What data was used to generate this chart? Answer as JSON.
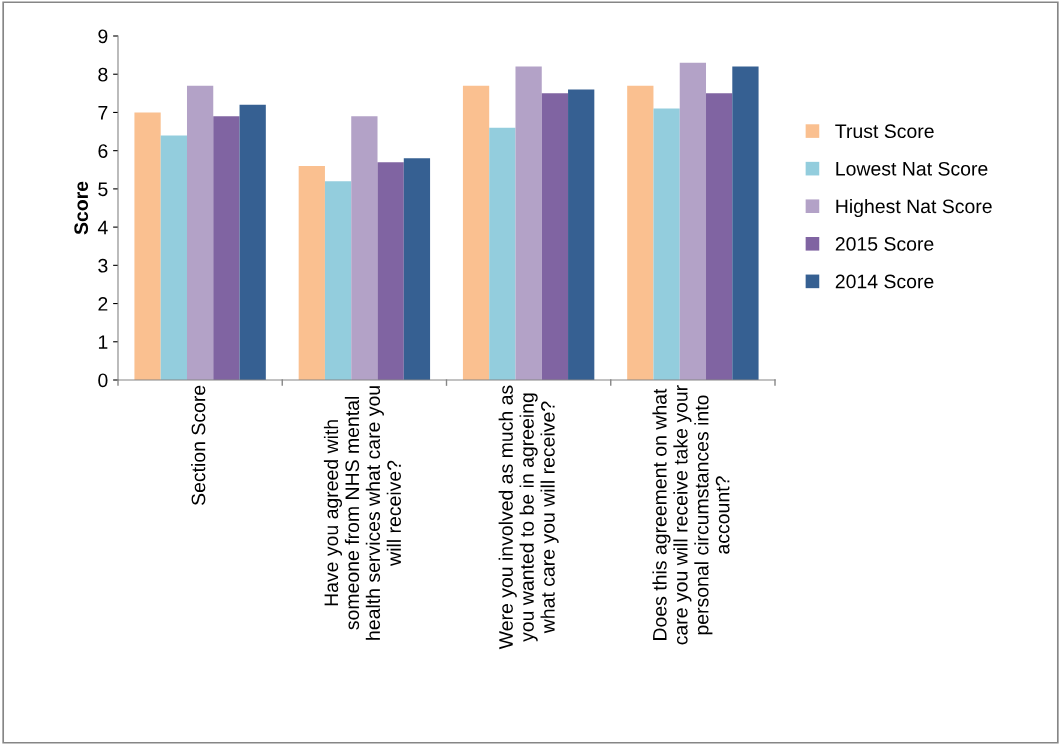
{
  "chart_data": {
    "type": "bar",
    "ylabel": "Score",
    "categories": [
      "Section Score",
      "Have you agreed with\nsomeone from NHS mental\nhealth services what care you\nwill receive?",
      "Were you involved as much as\nyou wanted to be in agreeing\nwhat care you will receive?",
      "Does this agreement on what\ncare you will receive take your\npersonal circumstances into\naccount?"
    ],
    "series": [
      {
        "name": "Trust Score",
        "color": "#fac090",
        "values": [
          7.0,
          5.6,
          7.7,
          7.7
        ]
      },
      {
        "name": "Lowest Nat Score",
        "color": "#93cddd",
        "values": [
          6.4,
          5.2,
          6.6,
          7.1
        ]
      },
      {
        "name": "Highest Nat Score",
        "color": "#b3a2c7",
        "values": [
          7.7,
          6.9,
          8.2,
          8.3
        ]
      },
      {
        "name": "2015 Score",
        "color": "#8064a2",
        "values": [
          6.9,
          5.7,
          7.5,
          7.5
        ]
      },
      {
        "name": "2014 Score",
        "color": "#366092",
        "values": [
          7.2,
          5.8,
          7.6,
          8.2
        ]
      }
    ],
    "ylim": [
      0,
      9
    ],
    "yticks": [
      0,
      1,
      2,
      3,
      4,
      5,
      6,
      7,
      8,
      9
    ],
    "grid": false,
    "legend": "right"
  }
}
